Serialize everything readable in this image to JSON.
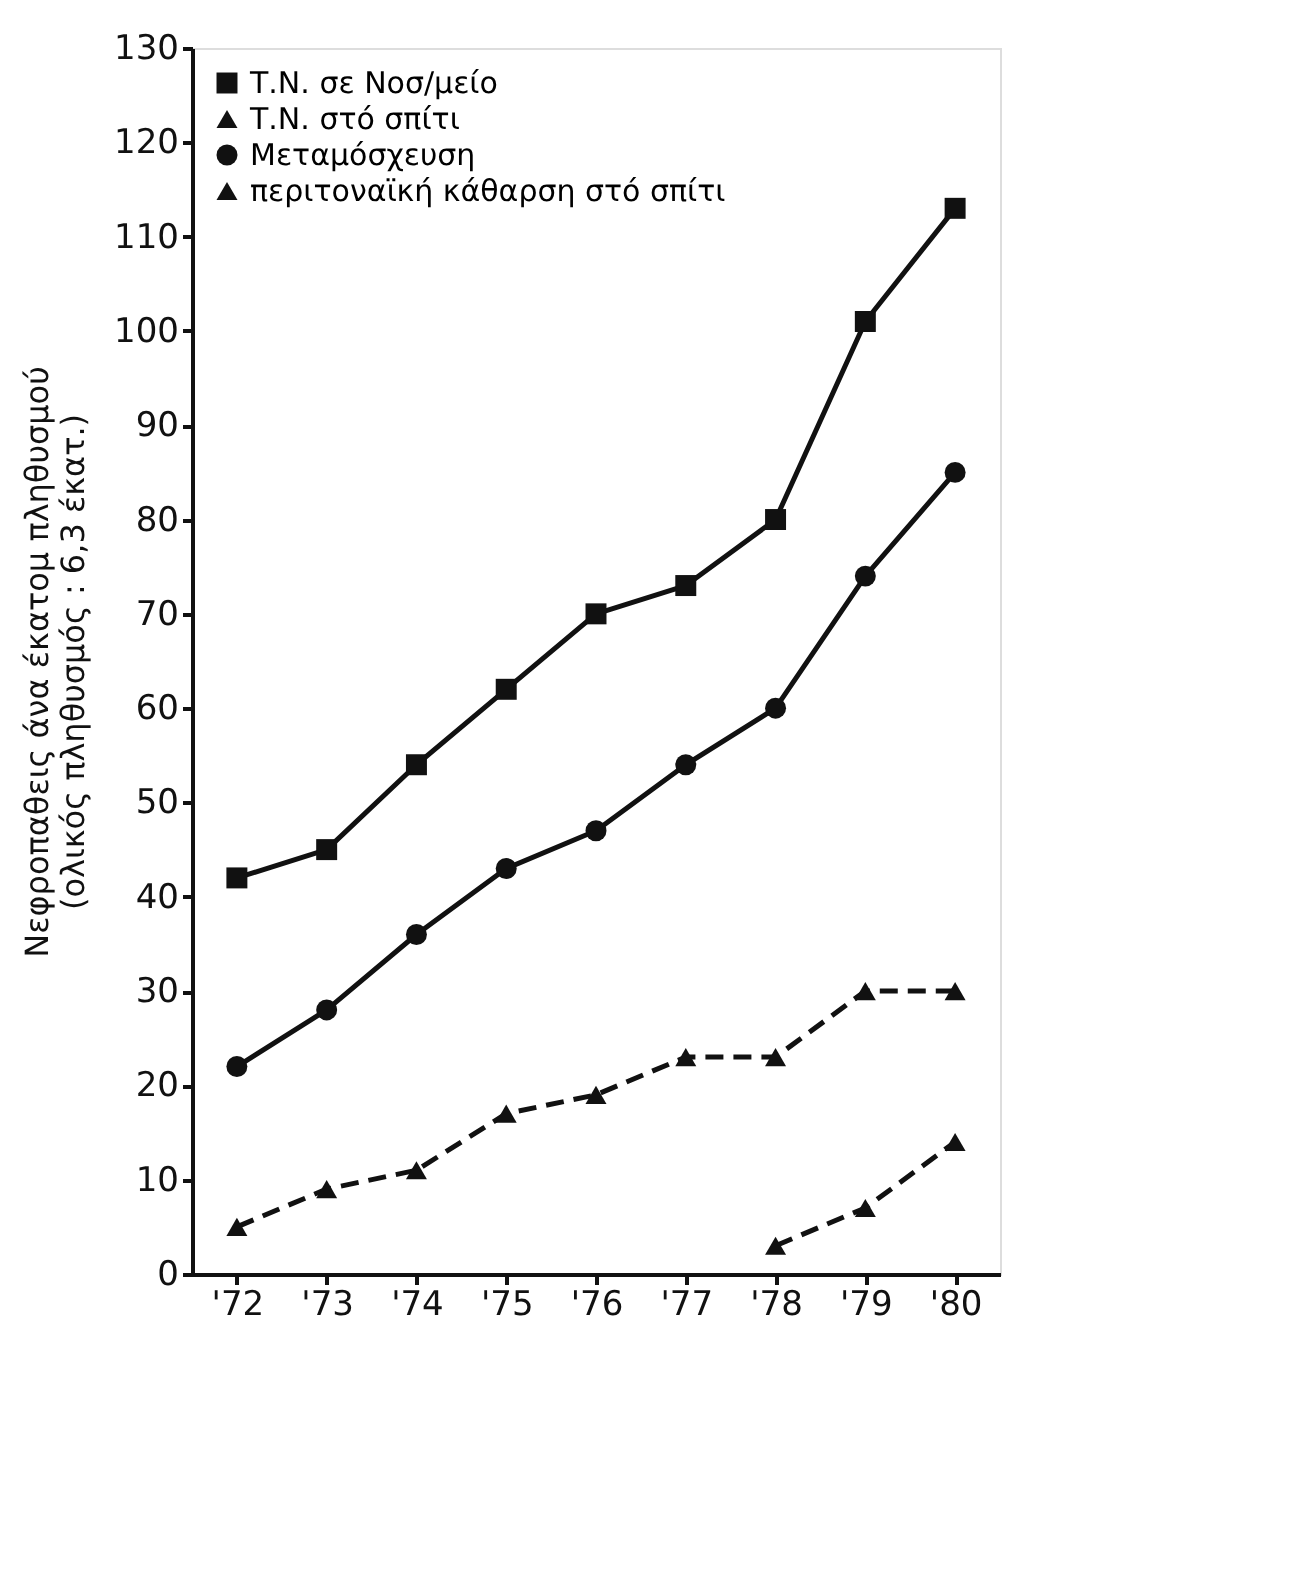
{
  "chart_data": {
    "type": "line",
    "ylabel": [
      "Νεφροπαθεις άνα έκατομ πληθυσμού",
      "(ολικός πληθυσμός : 6,3 έκατ.)"
    ],
    "categories": [
      "'72",
      "'73",
      "'74",
      "'75",
      "'76",
      "'77",
      "'78",
      "'79",
      "'80"
    ],
    "series": [
      {
        "name": "Τ.Ν. σε Νοσ/μείο",
        "color": "#111111",
        "marker": "square",
        "line_style": "solid",
        "values": [
          42,
          45,
          54,
          62,
          70,
          73,
          80,
          101,
          113
        ]
      },
      {
        "name": "Τ.Ν. στό σπίτι",
        "color": "#111111",
        "marker": "triangle",
        "line_style": "dashed",
        "values": [
          5,
          9,
          11,
          17,
          19,
          23,
          23,
          30,
          30
        ]
      },
      {
        "name": "Μεταμόσχευση",
        "color": "#111111",
        "marker": "circle",
        "line_style": "solid",
        "values": [
          22,
          28,
          36,
          43,
          47,
          54,
          60,
          74,
          85
        ]
      },
      {
        "name": "περιτοναϊκή κάθαρση στό σπίτι",
        "color": "#111111",
        "marker": "triangle",
        "line_style": "dashed",
        "values": [
          null,
          null,
          null,
          null,
          null,
          null,
          3,
          7,
          14
        ]
      }
    ],
    "ylim": [
      0,
      130
    ],
    "yticks": [
      0,
      10,
      20,
      30,
      40,
      50,
      60,
      70,
      80,
      90,
      100,
      110,
      120,
      130
    ],
    "grid": false,
    "legend": "top left"
  }
}
